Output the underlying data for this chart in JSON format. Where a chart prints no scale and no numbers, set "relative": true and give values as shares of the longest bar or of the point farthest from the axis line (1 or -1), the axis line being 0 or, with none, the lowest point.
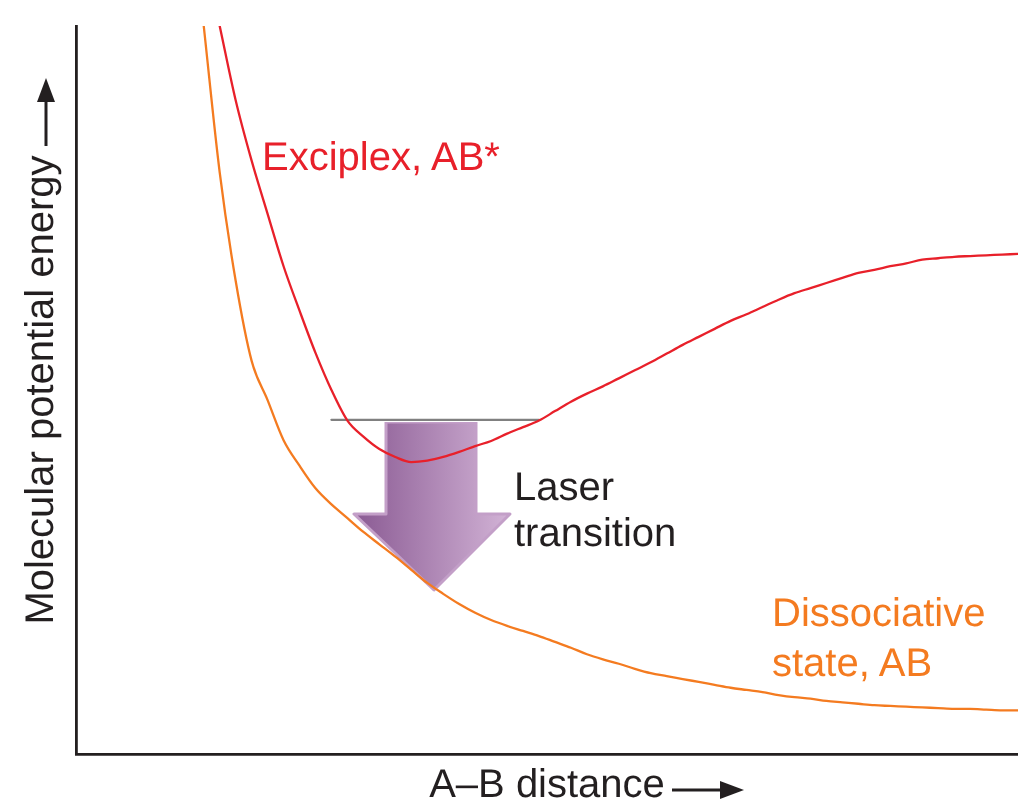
{
  "chart_data": {
    "type": "line",
    "relative": true,
    "xlabel": "A–B distance",
    "ylabel": "Molecular potential energy",
    "categories": [
      null,
      null,
      null,
      null,
      null,
      null,
      null,
      null,
      null,
      null,
      null,
      null,
      null,
      null,
      null,
      null,
      null,
      null,
      null,
      null,
      null,
      null,
      null,
      null,
      null,
      null,
      null,
      null,
      null,
      null,
      null,
      null,
      null,
      null,
      null,
      null,
      null,
      null,
      null,
      null,
      null,
      null,
      null,
      null,
      null,
      null,
      null,
      null,
      null,
      null,
      null,
      null,
      null,
      null,
      null,
      null,
      null,
      null,
      null,
      null
    ],
    "series": [
      {
        "name": "Exciplex, AB*",
        "color": "#e8202a",
        "values": [
          null,
          null,
          null,
          null,
          null,
          null,
          null,
          null,
          null,
          1.0,
          0.898,
          0.815,
          0.742,
          0.67,
          0.609,
          0.551,
          0.5,
          0.458,
          0.436,
          0.419,
          0.408,
          0.401,
          0.403,
          0.408,
          0.415,
          0.423,
          0.43,
          0.44,
          0.449,
          0.458,
          0.471,
          0.484,
          0.495,
          0.505,
          0.516,
          0.527,
          0.538,
          0.55,
          0.562,
          0.573,
          0.584,
          0.595,
          0.604,
          0.614,
          0.624,
          0.633,
          0.64,
          0.647,
          0.654,
          0.661,
          0.665,
          0.67,
          0.674,
          0.679,
          0.681,
          0.683,
          0.684,
          0.685,
          0.686,
          0.687
        ]
      },
      {
        "name": "Dissociative state, AB",
        "color": "#f47b20",
        "values": [
          null,
          null,
          null,
          null,
          null,
          null,
          null,
          null,
          1.0,
          0.799,
          0.65,
          0.54,
          0.486,
          0.431,
          0.396,
          0.365,
          0.343,
          0.324,
          0.305,
          0.288,
          0.271,
          0.253,
          0.235,
          0.22,
          0.206,
          0.194,
          0.184,
          0.176,
          0.169,
          0.162,
          0.154,
          0.146,
          0.137,
          0.13,
          0.124,
          0.117,
          0.111,
          0.107,
          0.103,
          0.099,
          0.095,
          0.091,
          0.088,
          0.085,
          0.081,
          0.078,
          0.076,
          0.073,
          0.071,
          0.069,
          0.067,
          0.066,
          0.065,
          0.064,
          0.063,
          0.062,
          0.062,
          0.061,
          0.06,
          0.06
        ]
      },
      {
        "color": "#808080",
        "values": [
          null,
          null,
          null,
          null,
          null,
          null,
          null,
          null,
          null,
          null,
          null,
          null,
          null,
          null,
          null,
          null,
          0.459,
          0.459,
          0.459,
          0.459,
          0.459,
          0.459,
          0.459,
          0.459,
          0.459,
          0.459,
          0.459,
          0.459,
          0.459,
          0.459,
          null,
          null,
          null,
          null,
          null,
          null,
          null,
          null,
          null,
          null,
          null,
          null,
          null,
          null,
          null,
          null,
          null,
          null,
          null,
          null,
          null,
          null,
          null,
          null,
          null,
          null,
          null,
          null,
          null,
          null
        ]
      }
    ],
    "annotations": [
      "Laser transition"
    ]
  }
}
